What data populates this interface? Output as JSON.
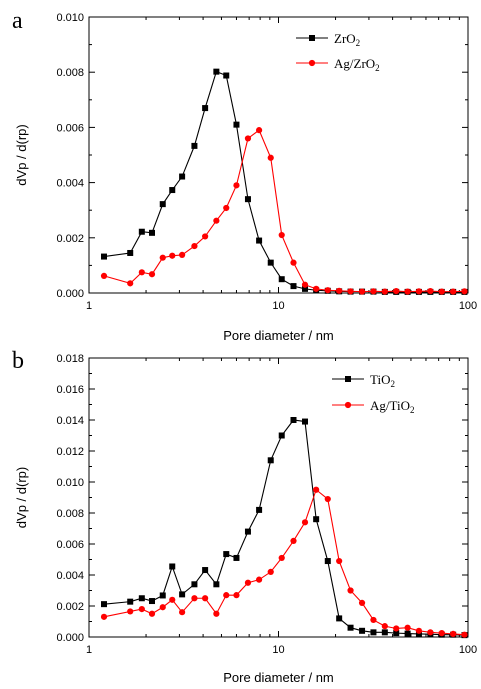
{
  "chart_data": [
    {
      "type": "line",
      "panel_label": "a",
      "xlabel": "Pore diameter / nm",
      "ylabel": "dVp / d(rp)",
      "x_scale": "log",
      "xlim": [
        1,
        100
      ],
      "ylim": [
        0,
        0.01
      ],
      "y_ticks": [
        "0.000",
        "0.002",
        "0.004",
        "0.006",
        "0.008",
        "0.010"
      ],
      "x_ticks": [
        "1",
        "10",
        "100"
      ],
      "legend_position": "top-right",
      "series": [
        {
          "name": "ZrO",
          "name_sub": "2",
          "color": "#000000",
          "marker": "square",
          "x": [
            1.2,
            1.65,
            1.9,
            2.15,
            2.45,
            2.75,
            3.1,
            3.6,
            4.1,
            4.7,
            5.3,
            6.0,
            6.9,
            7.9,
            9.1,
            10.4,
            12.0,
            13.8,
            15.8,
            18.2,
            20.9,
            24.0,
            27.6,
            31.7,
            36.4,
            41.8,
            48.0,
            55.1,
            63.3,
            72.7,
            83.5,
            95.8
          ],
          "y": [
            0.00132,
            0.00145,
            0.00222,
            0.00218,
            0.00322,
            0.00373,
            0.00422,
            0.00533,
            0.0067,
            0.00802,
            0.00788,
            0.0061,
            0.0034,
            0.0019,
            0.0011,
            0.0005,
            0.00025,
            0.00015,
            0.0001,
            8e-05,
            6e-05,
            5e-05,
            5e-05,
            5e-05,
            4e-05,
            4e-05,
            4e-05,
            4e-05,
            4e-05,
            4e-05,
            4e-05,
            4e-05
          ]
        },
        {
          "name": "Ag/ZrO",
          "name_sub": "2",
          "color": "#ff0000",
          "marker": "circle",
          "x": [
            1.2,
            1.65,
            1.9,
            2.15,
            2.45,
            2.75,
            3.1,
            3.6,
            4.1,
            4.7,
            5.3,
            6.0,
            6.9,
            7.9,
            9.1,
            10.4,
            12.0,
            13.8,
            15.8,
            18.2,
            20.9,
            24.0,
            27.6,
            31.7,
            36.4,
            41.8,
            48.0,
            55.1,
            63.3,
            72.7,
            83.5,
            95.8
          ],
          "y": [
            0.00062,
            0.00035,
            0.00075,
            0.00068,
            0.00128,
            0.00135,
            0.00138,
            0.0017,
            0.00205,
            0.00262,
            0.00308,
            0.0039,
            0.0056,
            0.0059,
            0.0049,
            0.0021,
            0.0011,
            0.0003,
            0.00015,
            0.0001,
            8e-05,
            6e-05,
            5e-05,
            6e-05,
            5e-05,
            7e-05,
            5e-05,
            6e-05,
            7e-05,
            5e-05,
            5e-05,
            6e-05
          ]
        }
      ]
    },
    {
      "type": "line",
      "panel_label": "b",
      "xlabel": "Pore diameter / nm",
      "ylabel": "dVp / d(rp)",
      "x_scale": "log",
      "xlim": [
        1,
        100
      ],
      "ylim": [
        0,
        0.018
      ],
      "y_ticks": [
        "0.000",
        "0.002",
        "0.004",
        "0.006",
        "0.008",
        "0.010",
        "0.012",
        "0.014",
        "0.016",
        "0.018"
      ],
      "x_ticks": [
        "1",
        "10",
        "100"
      ],
      "legend_position": "top-right",
      "series": [
        {
          "name": "TiO",
          "name_sub": "2",
          "color": "#000000",
          "marker": "square",
          "x": [
            1.2,
            1.65,
            1.9,
            2.15,
            2.45,
            2.75,
            3.1,
            3.6,
            4.1,
            4.7,
            5.3,
            6.0,
            6.9,
            7.9,
            9.1,
            10.4,
            12.0,
            13.8,
            15.8,
            18.2,
            20.9,
            24.0,
            27.6,
            31.7,
            36.4,
            41.8,
            48.0,
            55.1,
            63.3,
            72.7,
            83.5,
            95.8
          ],
          "y": [
            0.00212,
            0.00228,
            0.0025,
            0.00232,
            0.00268,
            0.00455,
            0.00275,
            0.0034,
            0.00432,
            0.0034,
            0.00535,
            0.0051,
            0.0068,
            0.0082,
            0.0114,
            0.013,
            0.014,
            0.0139,
            0.0076,
            0.0049,
            0.0012,
            0.0006,
            0.0004,
            0.0003,
            0.0003,
            0.00025,
            0.00022,
            0.0002,
            0.00018,
            0.00015,
            0.00015,
            0.00012
          ]
        },
        {
          "name": "Ag/TiO",
          "name_sub": "2",
          "color": "#ff0000",
          "marker": "circle",
          "x": [
            1.2,
            1.65,
            1.9,
            2.15,
            2.45,
            2.75,
            3.1,
            3.6,
            4.1,
            4.7,
            5.3,
            6.0,
            6.9,
            7.9,
            9.1,
            10.4,
            12.0,
            13.8,
            15.8,
            18.2,
            20.9,
            24.0,
            27.6,
            31.7,
            36.4,
            41.8,
            48.0,
            55.1,
            63.3,
            72.7,
            83.5,
            95.8
          ],
          "y": [
            0.0013,
            0.00165,
            0.0018,
            0.0015,
            0.00192,
            0.0024,
            0.0016,
            0.0025,
            0.0025,
            0.0015,
            0.0027,
            0.0027,
            0.0035,
            0.0037,
            0.0042,
            0.0051,
            0.0062,
            0.0074,
            0.0095,
            0.0089,
            0.0049,
            0.003,
            0.0022,
            0.0011,
            0.0007,
            0.00055,
            0.0006,
            0.0004,
            0.0003,
            0.00025,
            0.0002,
            0.00015
          ]
        }
      ]
    }
  ]
}
